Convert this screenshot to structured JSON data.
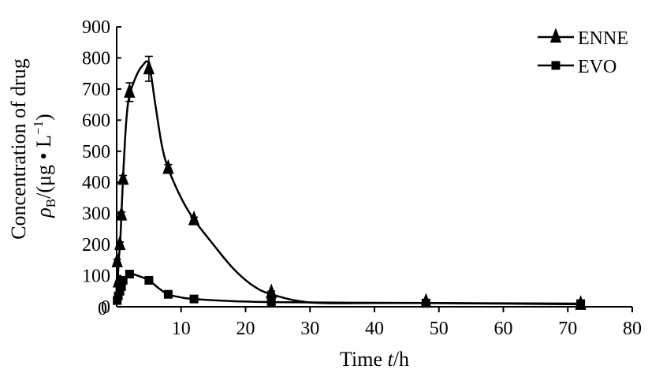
{
  "chart_data": {
    "type": "line",
    "xlabel": {
      "prefix": "Time ",
      "var": "t",
      "suffix": "/h"
    },
    "ylabel": {
      "line1": "Concentration of drug",
      "line2": {
        "sym": "ρ",
        "sub": "B",
        "unit": "/(μg • L",
        "sup": "−1",
        "close": ")"
      }
    },
    "xlim": [
      0,
      80
    ],
    "ylim": [
      0,
      900
    ],
    "xticks": [
      10,
      20,
      30,
      40,
      50,
      60,
      70,
      80
    ],
    "yticks": [
      0,
      100,
      200,
      300,
      400,
      500,
      600,
      700,
      800,
      900
    ],
    "x_origin_label": "0",
    "legend_position": "top-right",
    "series": [
      {
        "name": "ENNE",
        "marker": "triangle",
        "points": [
          {
            "x": 0.083,
            "y": 145,
            "err": 8
          },
          {
            "x": 0.25,
            "y": 80,
            "err": 0
          },
          {
            "x": 0.5,
            "y": 200,
            "err": 8
          },
          {
            "x": 0.75,
            "y": 295,
            "err": 10
          },
          {
            "x": 1,
            "y": 410,
            "err": 12
          },
          {
            "x": 2,
            "y": 690,
            "err": 30
          },
          {
            "x": 5,
            "y": 765,
            "err": 40
          },
          {
            "x": 8,
            "y": 445,
            "err": 12
          },
          {
            "x": 12,
            "y": 280,
            "err": 8
          },
          {
            "x": 24,
            "y": 45,
            "err": 5
          },
          {
            "x": 48,
            "y": 15,
            "err": 0
          },
          {
            "x": 72,
            "y": 8,
            "err": 0
          }
        ],
        "curve": [
          [
            0,
            10
          ],
          [
            0.3,
            140
          ],
          [
            0.6,
            230
          ],
          [
            1,
            420
          ],
          [
            1.5,
            600
          ],
          [
            2,
            680
          ],
          [
            3,
            740
          ],
          [
            4,
            775
          ],
          [
            5,
            780
          ],
          [
            6,
            650
          ],
          [
            7,
            520
          ],
          [
            8,
            445
          ],
          [
            10,
            350
          ],
          [
            12,
            280
          ],
          [
            15,
            200
          ],
          [
            18,
            125
          ],
          [
            21,
            70
          ],
          [
            24,
            40
          ],
          [
            30,
            14
          ],
          [
            40,
            12
          ],
          [
            48,
            12
          ],
          [
            60,
            10
          ],
          [
            72,
            8
          ]
        ]
      },
      {
        "name": "EVO",
        "marker": "square",
        "points": [
          {
            "x": 0.083,
            "y": 20
          },
          {
            "x": 0.25,
            "y": 35
          },
          {
            "x": 0.5,
            "y": 50
          },
          {
            "x": 0.75,
            "y": 65
          },
          {
            "x": 1,
            "y": 85
          },
          {
            "x": 2,
            "y": 105
          },
          {
            "x": 5,
            "y": 85
          },
          {
            "x": 8,
            "y": 40
          },
          {
            "x": 12,
            "y": 25
          },
          {
            "x": 24,
            "y": 15
          },
          {
            "x": 48,
            "y": 12
          },
          {
            "x": 72,
            "y": 10
          }
        ],
        "curve": [
          [
            0,
            10
          ],
          [
            0.5,
            50
          ],
          [
            1,
            85
          ],
          [
            2,
            105
          ],
          [
            3,
            102
          ],
          [
            5,
            85
          ],
          [
            6.5,
            60
          ],
          [
            8,
            40
          ],
          [
            10,
            30
          ],
          [
            12,
            25
          ],
          [
            18,
            18
          ],
          [
            24,
            15
          ],
          [
            36,
            13
          ],
          [
            48,
            12
          ],
          [
            60,
            11
          ],
          [
            72,
            10
          ]
        ]
      }
    ]
  }
}
